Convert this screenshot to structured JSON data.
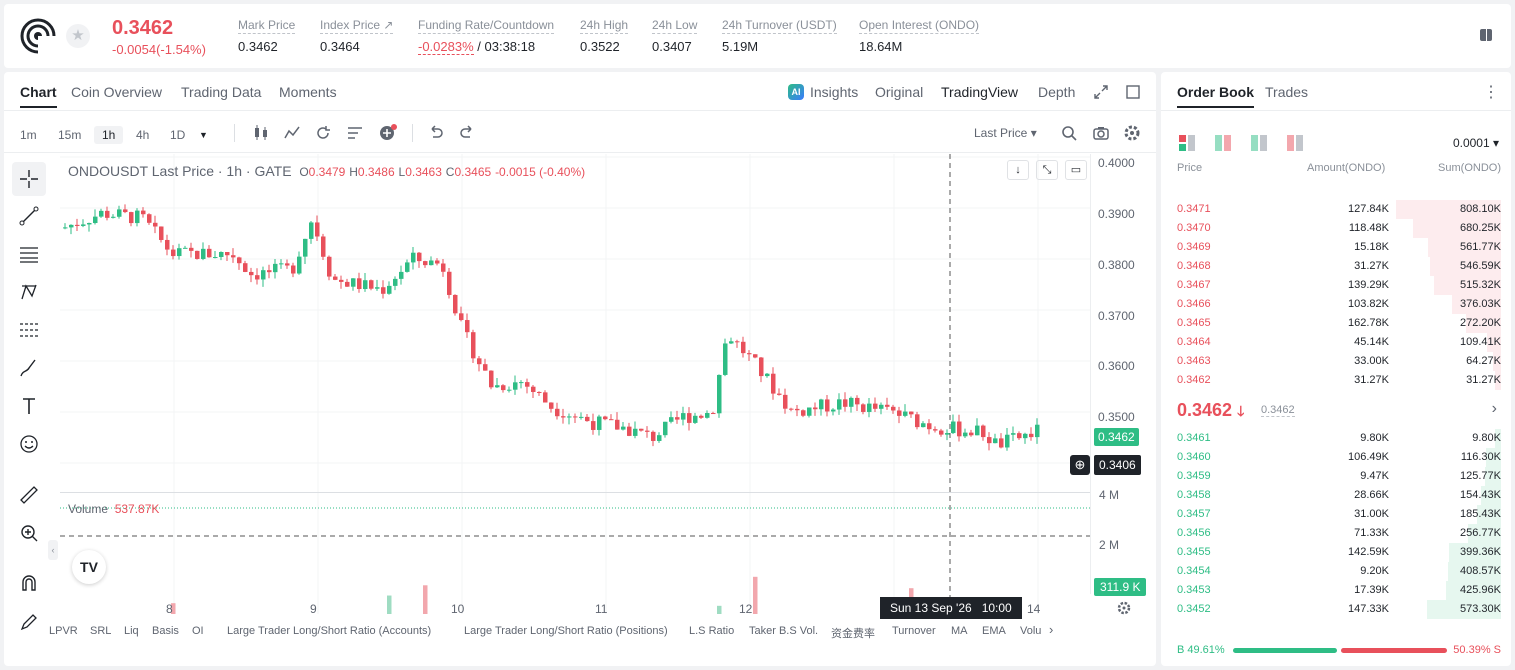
{
  "header": {
    "last_price": "0.3462",
    "change": "-0.0054(-1.54%)",
    "stats": [
      {
        "label": "Mark Price",
        "value": "0.3462"
      },
      {
        "label": "Index Price ↗",
        "value": "0.3464"
      },
      {
        "label": "Funding Rate/Countdown",
        "value": "-0.0283%",
        "value2": "/ 03:38:18"
      },
      {
        "label": "24h High",
        "value": "0.3522"
      },
      {
        "label": "24h Low",
        "value": "0.3407"
      },
      {
        "label": "24h Turnover (USDT)",
        "value": "5.19M"
      },
      {
        "label": "Open Interest (ONDO)",
        "value": "18.64M"
      }
    ]
  },
  "chart_tabs": [
    "Chart",
    "Coin Overview",
    "Trading Data",
    "Moments"
  ],
  "view_tabs": [
    "Insights",
    "Original",
    "TradingView",
    "Depth"
  ],
  "timeframes": [
    "1m",
    "15m",
    "1h",
    "4h",
    "1D"
  ],
  "price_type": "Last Price",
  "legend": {
    "symbol": "ONDOUSDT Last Price · 1h · GATE",
    "o": "0.3479",
    "h": "0.3486",
    "l": "0.3463",
    "c": "0.3465",
    "chg": "-0.0015 (-0.40%)"
  },
  "volume": {
    "label": "Volume",
    "value": "537.87K",
    "last": "311.9 K"
  },
  "price_axis": [
    "0.4000",
    "0.3900",
    "0.3800",
    "0.3700",
    "0.3600",
    "0.3500"
  ],
  "vol_axis": [
    "4 M",
    "2 M"
  ],
  "last_badge": "0.3462",
  "cross_badge": "0.3406",
  "time_axis": [
    "8",
    "9",
    "10",
    "11",
    "12",
    "14"
  ],
  "cross_time": "Sun 13 Sep '26   10:00",
  "indicators": [
    "LPVR",
    "SRL",
    "Liq",
    "Basis",
    "OI",
    "Large Trader Long/Short Ratio (Accounts)",
    "Large Trader Long/Short Ratio (Positions)",
    "L.S Ratio",
    "Taker B.S Vol.",
    "资金费率",
    "Turnover",
    "MA",
    "EMA",
    "Volu"
  ],
  "orderbook": {
    "tabs": [
      "Order Book",
      "Trades"
    ],
    "precision": "0.0001",
    "cols": [
      "Price",
      "Amount(ONDO)",
      "Sum(ONDO)"
    ],
    "asks": [
      [
        "0.3471",
        "127.84K",
        "808.10K"
      ],
      [
        "0.3470",
        "118.48K",
        "680.25K"
      ],
      [
        "0.3469",
        "15.18K",
        "561.77K"
      ],
      [
        "0.3468",
        "31.27K",
        "546.59K"
      ],
      [
        "0.3467",
        "139.29K",
        "515.32K"
      ],
      [
        "0.3466",
        "103.82K",
        "376.03K"
      ],
      [
        "0.3465",
        "162.78K",
        "272.20K"
      ],
      [
        "0.3464",
        "45.14K",
        "109.41K"
      ],
      [
        "0.3463",
        "33.00K",
        "64.27K"
      ],
      [
        "0.3462",
        "31.27K",
        "31.27K"
      ]
    ],
    "mid": "0.3462",
    "mid_mark": "0.3462",
    "bids": [
      [
        "0.3461",
        "9.80K",
        "9.80K"
      ],
      [
        "0.3460",
        "106.49K",
        "116.30K"
      ],
      [
        "0.3459",
        "9.47K",
        "125.77K"
      ],
      [
        "0.3458",
        "28.66K",
        "154.43K"
      ],
      [
        "0.3457",
        "31.00K",
        "185.43K"
      ],
      [
        "0.3456",
        "71.33K",
        "256.77K"
      ],
      [
        "0.3455",
        "142.59K",
        "399.36K"
      ],
      [
        "0.3454",
        "9.20K",
        "408.57K"
      ],
      [
        "0.3453",
        "17.39K",
        "425.96K"
      ],
      [
        "0.3452",
        "147.33K",
        "573.30K"
      ]
    ],
    "buy_ratio": "B 49.61%",
    "sell_ratio": "50.39% S"
  },
  "colors": {
    "up": "#2ebd85",
    "down": "#e8505b"
  }
}
